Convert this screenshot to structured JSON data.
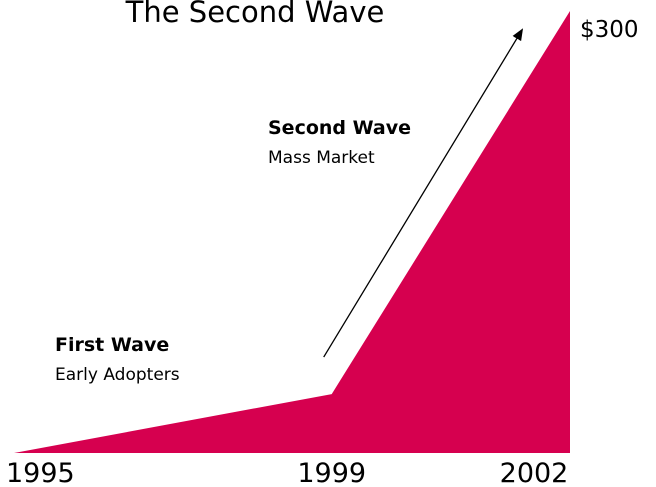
{
  "chart_data": {
    "type": "area",
    "title": "The Second Wave",
    "x": [
      1995,
      1999,
      2002
    ],
    "x_tick_labels": [
      "1995",
      "1999",
      "2002"
    ],
    "series": [
      {
        "values": [
          0,
          40,
          300
        ],
        "color": "#d6004f"
      }
    ],
    "end_value_label": "$300",
    "xlabel": "",
    "ylabel": "",
    "ylim": [
      0,
      300
    ],
    "grid": false,
    "annotations": [
      {
        "title": "First Wave",
        "subtitle": "Early Adopters"
      },
      {
        "title": "Second Wave",
        "subtitle": "Mass Market"
      }
    ],
    "arrow": true
  }
}
